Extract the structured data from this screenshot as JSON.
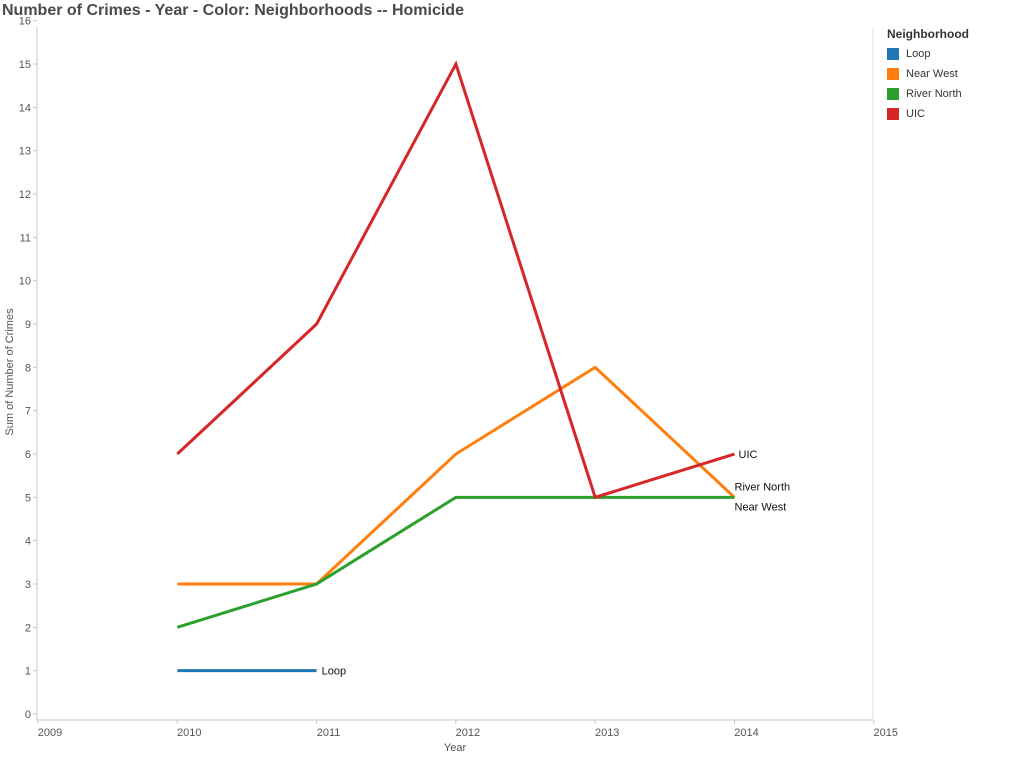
{
  "chart_data": {
    "type": "line",
    "title": "Number of Crimes - Year - Color: Neighborhoods -- Homicide",
    "xlabel": "Year",
    "ylabel": "Sum of Number of Crimes",
    "xlim": [
      2009,
      2015
    ],
    "ylim": [
      0,
      16
    ],
    "x_ticks": [
      "2009",
      "2010",
      "2011",
      "2012",
      "2013",
      "2014",
      "2015"
    ],
    "y_ticks": [
      "0",
      "1",
      "2",
      "3",
      "4",
      "5",
      "6",
      "7",
      "8",
      "9",
      "10",
      "11",
      "12",
      "13",
      "14",
      "15",
      "16"
    ],
    "grid": false,
    "legend": {
      "title": "Neighborhood",
      "position": "right"
    },
    "series": [
      {
        "name": "Loop",
        "color": "#1f77b4",
        "x": [
          2010,
          2011
        ],
        "values": [
          1,
          1
        ],
        "end_label": "Loop"
      },
      {
        "name": "Near West",
        "color": "#ff7f0e",
        "x": [
          2010,
          2011,
          2012,
          2013,
          2014
        ],
        "values": [
          3,
          3,
          6,
          8,
          5
        ],
        "end_label": "Near West"
      },
      {
        "name": "River North",
        "color": "#2ca02c",
        "x": [
          2010,
          2011,
          2012,
          2013,
          2014
        ],
        "values": [
          2,
          3,
          5,
          5,
          5
        ],
        "end_label": "River North"
      },
      {
        "name": "UIC",
        "color": "#d62728",
        "x": [
          2010,
          2011,
          2012,
          2013,
          2014
        ],
        "values": [
          6,
          9,
          15,
          5,
          6
        ],
        "end_label": "UIC"
      }
    ]
  }
}
